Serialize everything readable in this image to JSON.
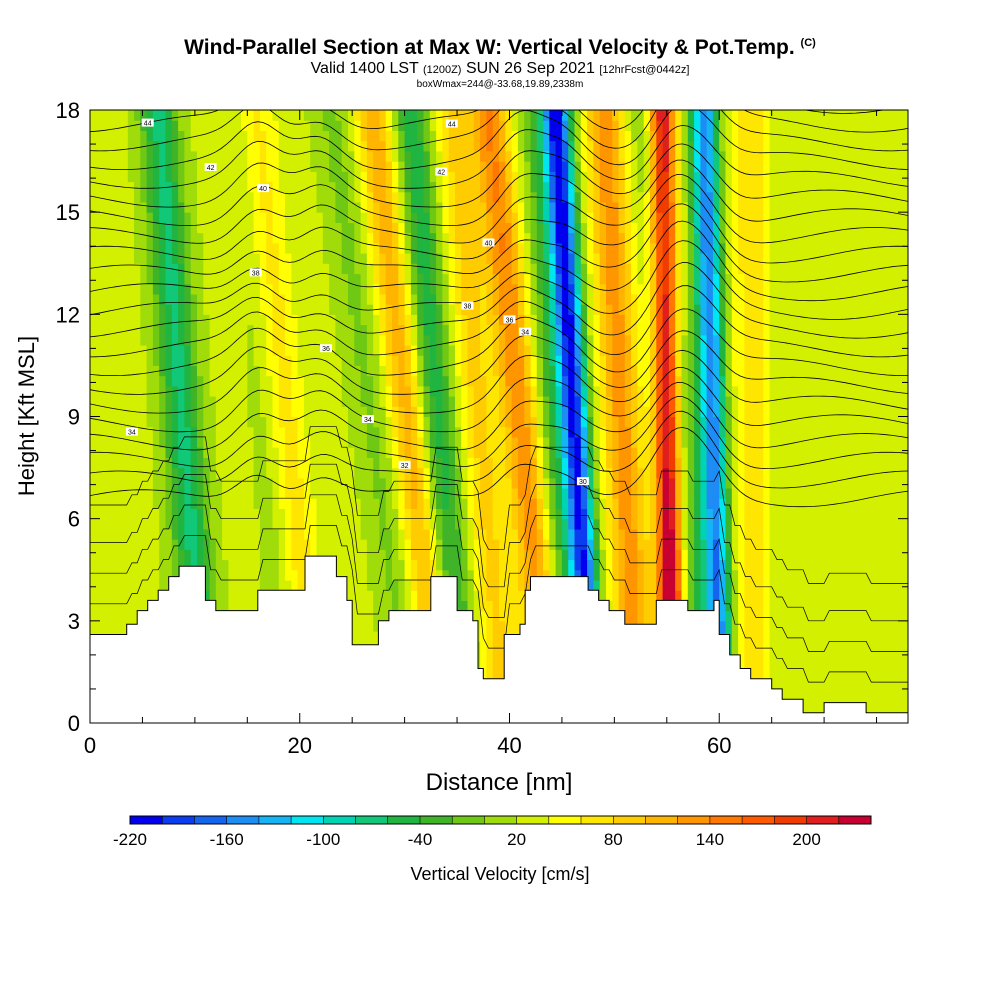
{
  "header": {
    "title": "Wind-Parallel Section at Max W: Vertical Velocity & Pot.Temp.",
    "title_tag": "(C)",
    "subtitle_a": "Valid 1400 LST",
    "subtitle_b": "(1200Z)",
    "subtitle_c": "SUN 26 Sep 2021",
    "subtitle_d": "[12hrFcst@0442z]",
    "subsubtitle": "boxWmax=244@-33.68,19.89,2338m"
  },
  "colorbar": {
    "label": "Vertical Velocity [cm/s]",
    "tick_labels": [
      "-220",
      "-160",
      "-100",
      "-40",
      "20",
      "80",
      "140",
      "200"
    ],
    "colors": [
      "#0000ee",
      "#0a3cf0",
      "#1464f0",
      "#1e8cf5",
      "#14b4f5",
      "#00e6f0",
      "#00d2b4",
      "#10c878",
      "#20b440",
      "#40b428",
      "#6ec814",
      "#a0dc0a",
      "#d2f000",
      "#ffff00",
      "#ffe600",
      "#ffcc00",
      "#ffb400",
      "#ff9600",
      "#ff7800",
      "#ff5a00",
      "#f03c00",
      "#e01e1e",
      "#c80032"
    ]
  },
  "chart_data": {
    "type": "heatmap",
    "title": "Wind-Parallel Section at Max W: Vertical Velocity & Pot.Temp.",
    "xlabel": "Distance [nm]",
    "ylabel": "Height [Kft MSL]",
    "xlim": [
      0,
      78
    ],
    "ylim": [
      0,
      18
    ],
    "x_ticks": [
      "0",
      "20",
      "40",
      "60"
    ],
    "y_ticks": [
      "0",
      "3",
      "6",
      "9",
      "12",
      "15",
      "18"
    ],
    "background_w": 5,
    "updraft_downdraft_bands": [
      {
        "x0": 10.5,
        "x1": 6.5,
        "w": -90
      },
      {
        "x0": 20.5,
        "x1": 15.5,
        "w": 75
      },
      {
        "x0": 19.5,
        "x1": 15.0,
        "w": -45
      },
      {
        "x0": 30.0,
        "x1": 23.0,
        "w": -30
      },
      {
        "x0": 33.0,
        "x1": 27.0,
        "w": 90
      },
      {
        "x0": 35.0,
        "x1": 30.5,
        "w": -80
      },
      {
        "x0": 39.0,
        "x1": 34.5,
        "w": 60
      },
      {
        "x0": 43.5,
        "x1": 38.0,
        "w": 115
      },
      {
        "x0": 45.0,
        "x1": 43.0,
        "w": -60
      },
      {
        "x0": 47.5,
        "x1": 44.5,
        "w": -220
      },
      {
        "x0": 52.0,
        "x1": 49.0,
        "w": 105
      },
      {
        "x0": 55.5,
        "x1": 54.5,
        "w": 230
      },
      {
        "x0": 58.0,
        "x1": 53.5,
        "w": -55
      },
      {
        "x0": 60.0,
        "x1": 58.5,
        "w": -180
      },
      {
        "x0": 63.0,
        "x1": 63.0,
        "w": 45
      }
    ],
    "terrain_kft": [
      [
        0,
        2.6
      ],
      [
        2.5,
        2.6
      ],
      [
        3.5,
        2.9
      ],
      [
        4.5,
        3.3
      ],
      [
        5.5,
        3.6
      ],
      [
        6.5,
        3.9
      ],
      [
        7.5,
        4.3
      ],
      [
        8.5,
        4.6
      ],
      [
        10.5,
        4.6
      ],
      [
        11.0,
        3.6
      ],
      [
        12.0,
        3.3
      ],
      [
        15.0,
        3.3
      ],
      [
        16.0,
        3.9
      ],
      [
        19.5,
        3.9
      ],
      [
        20.5,
        4.9
      ],
      [
        22.5,
        4.9
      ],
      [
        23.5,
        4.3
      ],
      [
        24.5,
        3.6
      ],
      [
        25.0,
        2.3
      ],
      [
        26.5,
        2.3
      ],
      [
        27.5,
        3.0
      ],
      [
        28.5,
        3.3
      ],
      [
        32.0,
        3.3
      ],
      [
        32.5,
        4.3
      ],
      [
        34.5,
        4.3
      ],
      [
        35.0,
        3.3
      ],
      [
        36.5,
        3.0
      ],
      [
        37.0,
        1.6
      ],
      [
        37.5,
        1.3
      ],
      [
        39.0,
        1.3
      ],
      [
        39.5,
        2.6
      ],
      [
        41.0,
        2.9
      ],
      [
        41.5,
        3.9
      ],
      [
        42.0,
        4.3
      ],
      [
        46.5,
        4.3
      ],
      [
        47.5,
        3.9
      ],
      [
        48.5,
        3.6
      ],
      [
        49.5,
        3.3
      ],
      [
        50.5,
        3.3
      ],
      [
        51.0,
        2.9
      ],
      [
        53.5,
        2.9
      ],
      [
        54.0,
        3.6
      ],
      [
        56.5,
        3.6
      ],
      [
        57.0,
        3.3
      ],
      [
        59.0,
        3.3
      ],
      [
        59.5,
        3.6
      ],
      [
        60.0,
        2.6
      ],
      [
        61.0,
        2.0
      ],
      [
        62.0,
        1.6
      ],
      [
        63.0,
        1.3
      ],
      [
        65.0,
        1.0
      ],
      [
        66.0,
        0.7
      ],
      [
        68.0,
        0.3
      ],
      [
        69.5,
        0.3
      ],
      [
        70.0,
        0.6
      ],
      [
        73.0,
        0.6
      ],
      [
        74.0,
        0.3
      ],
      [
        78.0,
        0.3
      ]
    ],
    "theta_contours": [
      {
        "label": "44",
        "base_kft": 17.6,
        "label_x": 5.5
      },
      {
        "label": "44",
        "base_kft": 17.4,
        "label_x": 34.5
      },
      {
        "label": "42",
        "base_kft": 16.2,
        "label_x": 11.5
      },
      {
        "label": "42",
        "base_kft": 16.3,
        "label_x": 33.5
      },
      {
        "label": "40",
        "base_kft": 14.8,
        "label_x": 16.5
      },
      {
        "label": "40",
        "base_kft": 14.0,
        "label_x": 38.0
      },
      {
        "label": "38",
        "base_kft": 12.5,
        "label_x": 15.8
      },
      {
        "label": "38",
        "base_kft": 12.0,
        "label_x": 36.0
      },
      {
        "label": "36",
        "base_kft": 10.4,
        "label_x": 22.5
      },
      {
        "label": "36",
        "base_kft": 10.6,
        "label_x": 40.0
      },
      {
        "label": "34",
        "base_kft": 8.6,
        "label_x": 4.0
      },
      {
        "label": "34",
        "base_kft": 8.8,
        "label_x": 26.5
      },
      {
        "label": "34",
        "base_kft": 10.0,
        "label_x": 41.5
      },
      {
        "label": "32",
        "base_kft": 7.4,
        "label_x": 30.0
      },
      {
        "label": "30",
        "base_kft": 6.7,
        "label_x": 47.0
      }
    ]
  },
  "axes": {
    "xlabel": "Distance [nm]",
    "ylabel": "Height [Kft MSL]",
    "x_tick_labels": [
      "0",
      "20",
      "40",
      "60"
    ],
    "y_tick_labels": [
      "0",
      "3",
      "6",
      "9",
      "12",
      "15",
      "18"
    ]
  }
}
